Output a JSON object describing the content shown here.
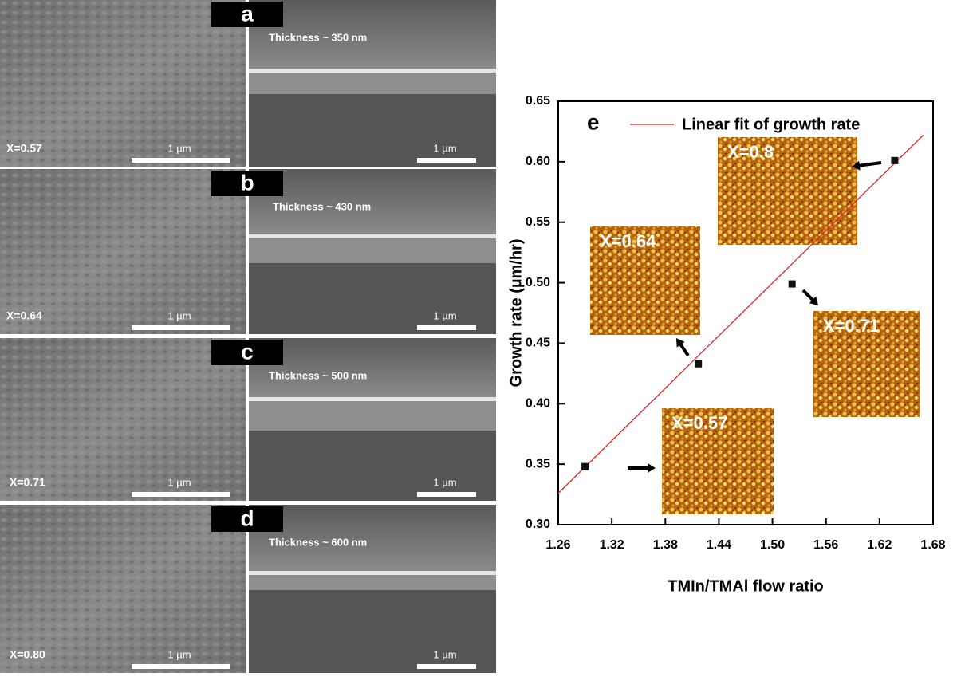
{
  "panels": [
    {
      "label": "a",
      "composition": "X=0.57",
      "thickness": "Thickness ~ 350 nm",
      "scale_left": "1 µm",
      "scale_right": "1 µm"
    },
    {
      "label": "b",
      "composition": "X=0.64",
      "thickness": "Thickness ~ 430 nm",
      "scale_left": "1 µm",
      "scale_right": "1 µm"
    },
    {
      "label": "c",
      "composition": "X=0.71",
      "thickness": "Thickness ~ 500 nm",
      "scale_left": "1 µm",
      "scale_right": "1 µm"
    },
    {
      "label": "d",
      "composition": "X=0.80",
      "thickness": "Thickness ~ 600 nm",
      "scale_left": "1 µm",
      "scale_right": "1 µm"
    }
  ],
  "chart_data": {
    "type": "scatter",
    "panel_label": "e",
    "xlabel": "TMIn/TMAl flow ratio",
    "ylabel": "Growth rate (µm/hr)",
    "x": [
      1.29,
      1.417,
      1.522,
      1.637
    ],
    "values": [
      0.348,
      0.433,
      0.499,
      0.601
    ],
    "color": "#111111",
    "fit": {
      "name": "Linear fit of growth rate",
      "color": "#e02020",
      "x": [
        1.26,
        1.669
      ],
      "values": [
        0.326,
        0.622
      ]
    },
    "xlim": [
      1.26,
      1.68
    ],
    "ylim": [
      0.3,
      0.65
    ],
    "xticks": [
      1.26,
      1.32,
      1.38,
      1.44,
      {
        "value": 1.5,
        "label": "1.50"
      },
      1.56,
      1.62,
      1.68
    ],
    "yticks": [
      {
        "value": 0.3,
        "label": "0.30"
      },
      0.35,
      {
        "value": 0.4,
        "label": "0.40"
      },
      0.45,
      {
        "value": 0.5,
        "label": "0.50"
      },
      0.55,
      {
        "value": 0.6,
        "label": "0.60"
      },
      0.65
    ],
    "insets": [
      "X=0.8",
      "X=0.64",
      "X=0.71",
      "X=0.57"
    ]
  }
}
